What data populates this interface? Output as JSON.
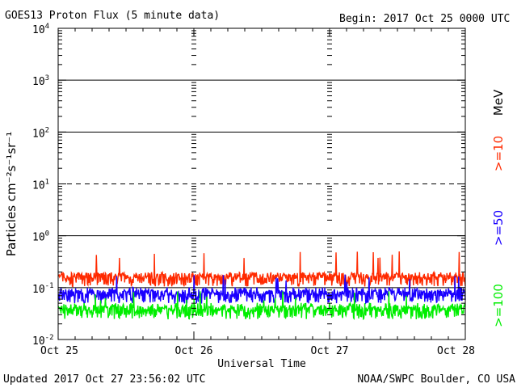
{
  "chart_data": {
    "type": "line",
    "title": "GOES13 Proton Flux (5 minute data)",
    "begin_text": "Begin: 2017 Oct 25 0000 UTC",
    "xlabel": "Universal Time",
    "ylabel": "Particles cm⁻²s⁻¹sr⁻¹",
    "y_scale": "log",
    "ylim": [
      0.01,
      10000
    ],
    "y_ticks": [
      {
        "base": "10",
        "exp": "-2",
        "value": 0.01
      },
      {
        "base": "10",
        "exp": "-1",
        "value": 0.1
      },
      {
        "base": "10",
        "exp": "0",
        "value": 1
      },
      {
        "base": "10",
        "exp": "1",
        "value": 10
      },
      {
        "base": "10",
        "exp": "2",
        "value": 100
      },
      {
        "base": "10",
        "exp": "3",
        "value": 1000
      },
      {
        "base": "10",
        "exp": "4",
        "value": 10000
      }
    ],
    "x_ticks": [
      "Oct 25",
      "Oct 26",
      "Oct 27",
      "Oct 28"
    ],
    "x_range_days": [
      0,
      3
    ],
    "legend_unit": "MeV",
    "series": [
      {
        "name": ">=10",
        "color": "#ff2a00",
        "baseline": 0.15,
        "spread": 0.18,
        "spike": 0.55
      },
      {
        "name": ">=50",
        "color": "#1a00ff",
        "baseline": 0.07,
        "spread": 0.09,
        "spike": 0.2
      },
      {
        "name": ">=100",
        "color": "#00ee00",
        "baseline": 0.035,
        "spread": 0.045,
        "spike": 0.09
      }
    ],
    "thresholds": [
      {
        "value": 10,
        "style": "dashed"
      },
      {
        "value": 1,
        "style": "solid"
      },
      {
        "value": 100,
        "style": "solid"
      },
      {
        "value": 1000,
        "style": "solid"
      },
      {
        "value": 0.1,
        "style": "solid"
      }
    ]
  },
  "footer": {
    "updated": "Updated 2017 Oct 27 23:56:02 UTC",
    "source": "NOAA/SWPC Boulder, CO USA"
  }
}
